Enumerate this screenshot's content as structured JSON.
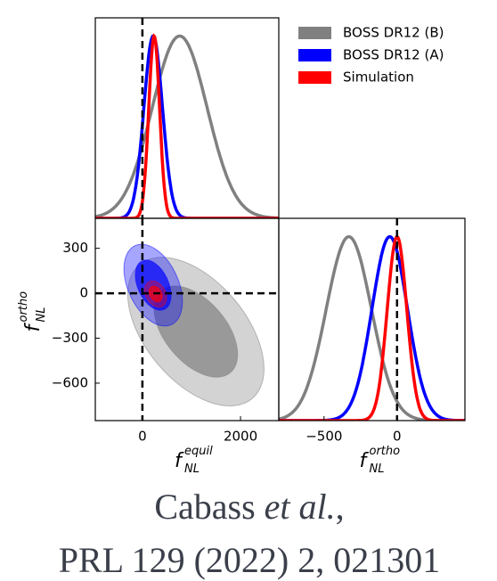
{
  "chart_data": [
    {
      "type": "density",
      "xlim": [
        -960,
        2780
      ],
      "ylim": [
        0,
        1.1
      ],
      "reference_x": 0,
      "legend": "upper right",
      "series": [
        {
          "name": "BOSS DR12 (B)",
          "color": "#808080",
          "mean": 760,
          "sd": 560
        },
        {
          "name": "BOSS DR12 (A)",
          "color": "#0000ff",
          "mean": 220,
          "sd": 190
        },
        {
          "name": "Simulation",
          "color": "#ff0000",
          "mean": 240,
          "sd": 110
        }
      ]
    },
    {
      "type": "contour",
      "xlim": [
        -960,
        2780
      ],
      "ylim": [
        -850,
        500
      ],
      "reference_x": 0,
      "reference_y": 0,
      "xticks": [
        0,
        2000
      ],
      "yticks": [
        {
          "value": -600,
          "label": "−600"
        },
        {
          "value": -300,
          "label": "−300"
        },
        0,
        300
      ],
      "xlabel": {
        "symbol": "f",
        "sub": "NL",
        "sup": "equil"
      },
      "ylabel": {
        "symbol": "f",
        "sub": "NL",
        "sup": "ortho"
      },
      "series": [
        {
          "color": "#808080",
          "mean": [
            1090,
            -256
          ],
          "sd": [
            560,
            200
          ],
          "rho": -0.5
        },
        {
          "color": "#0000ff",
          "mean": [
            220,
            54
          ],
          "sd": [
            240,
            110
          ],
          "rho": -0.4
        },
        {
          "color": "#ff0000",
          "mean": [
            270,
            -5
          ],
          "sd": [
            90,
            35
          ],
          "rho": -0.3
        }
      ]
    },
    {
      "type": "density",
      "xlim": [
        -810,
        465
      ],
      "ylim": [
        0,
        1.1
      ],
      "reference_x": 0,
      "xticks": [
        {
          "value": -500,
          "label": "−500"
        },
        0
      ],
      "xlabel": {
        "symbol": "f",
        "sub": "NL",
        "sup": "ortho"
      },
      "series": [
        {
          "color": "#808080",
          "mean": -330,
          "sd": 155
        },
        {
          "color": "#0000ff",
          "mean": -50,
          "sd": 122
        },
        {
          "color": "#ff0000",
          "mean": 0,
          "sd": 67
        }
      ]
    }
  ],
  "citation": {
    "author": "Cabass",
    "etal": "et al.",
    "punct": ",",
    "ref": "PRL 129 (2022) 2, 021301"
  }
}
